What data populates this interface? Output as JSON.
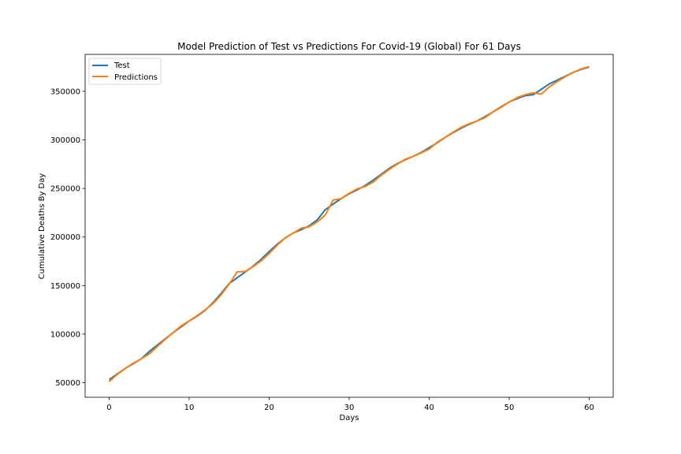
{
  "chart_data": {
    "type": "line",
    "title": "Model Prediction of Test vs Predictions For Covid-19 (Global) For 61 Days",
    "xlabel": "Days",
    "ylabel": "Cumulative Deaths By Day",
    "xlim": [
      -3,
      63
    ],
    "ylim": [
      35000,
      388000
    ],
    "xticks": [
      0,
      10,
      20,
      30,
      40,
      50,
      60
    ],
    "xtick_labels": [
      "0",
      "10",
      "20",
      "30",
      "40",
      "50",
      "60"
    ],
    "yticks": [
      50000,
      100000,
      150000,
      200000,
      250000,
      300000,
      350000
    ],
    "ytick_labels": [
      "50000",
      "100000",
      "150000",
      "200000",
      "250000",
      "300000",
      "350000"
    ],
    "grid": false,
    "legend_position": "upper-left",
    "x": [
      0,
      1,
      2,
      3,
      4,
      5,
      6,
      7,
      8,
      9,
      10,
      11,
      12,
      13,
      14,
      15,
      16,
      17,
      18,
      19,
      20,
      21,
      22,
      23,
      24,
      25,
      26,
      27,
      28,
      29,
      30,
      31,
      32,
      33,
      34,
      35,
      36,
      37,
      38,
      39,
      40,
      41,
      42,
      43,
      44,
      45,
      46,
      47,
      48,
      49,
      50,
      51,
      52,
      53,
      54,
      55,
      56,
      57,
      58,
      59,
      60
    ],
    "series": [
      {
        "name": "Test",
        "color": "#1f77b4",
        "values": [
          53000,
          59000,
          64500,
          69500,
          74500,
          82000,
          88500,
          95000,
          101500,
          107500,
          113500,
          118500,
          124500,
          132500,
          142000,
          152000,
          158000,
          164000,
          170000,
          177000,
          185000,
          192500,
          199000,
          204000,
          207500,
          211500,
          217500,
          228000,
          234000,
          239500,
          244500,
          248500,
          253000,
          258500,
          264500,
          270500,
          275500,
          279500,
          283000,
          287000,
          292000,
          297000,
          302500,
          307500,
          312000,
          316000,
          319500,
          324000,
          329000,
          334000,
          339000,
          342500,
          345500,
          346500,
          352000,
          357500,
          361500,
          365500,
          369500,
          372500,
          375000
        ]
      },
      {
        "name": "Predictions",
        "color": "#ff7f0e",
        "values": [
          51000,
          58500,
          64500,
          70000,
          74500,
          79500,
          87000,
          94500,
          101500,
          108500,
          113500,
          119000,
          125000,
          131500,
          140500,
          151500,
          164000,
          164500,
          169500,
          175500,
          183000,
          191500,
          199000,
          204000,
          209000,
          210500,
          215500,
          222500,
          238000,
          239500,
          245000,
          249500,
          252000,
          256500,
          263500,
          269500,
          275000,
          280000,
          283000,
          286500,
          290500,
          297500,
          302500,
          308000,
          313000,
          316500,
          319500,
          323000,
          329000,
          333500,
          339000,
          343500,
          346500,
          348500,
          347000,
          354500,
          360000,
          365000,
          369500,
          373000,
          375500
        ]
      }
    ]
  }
}
